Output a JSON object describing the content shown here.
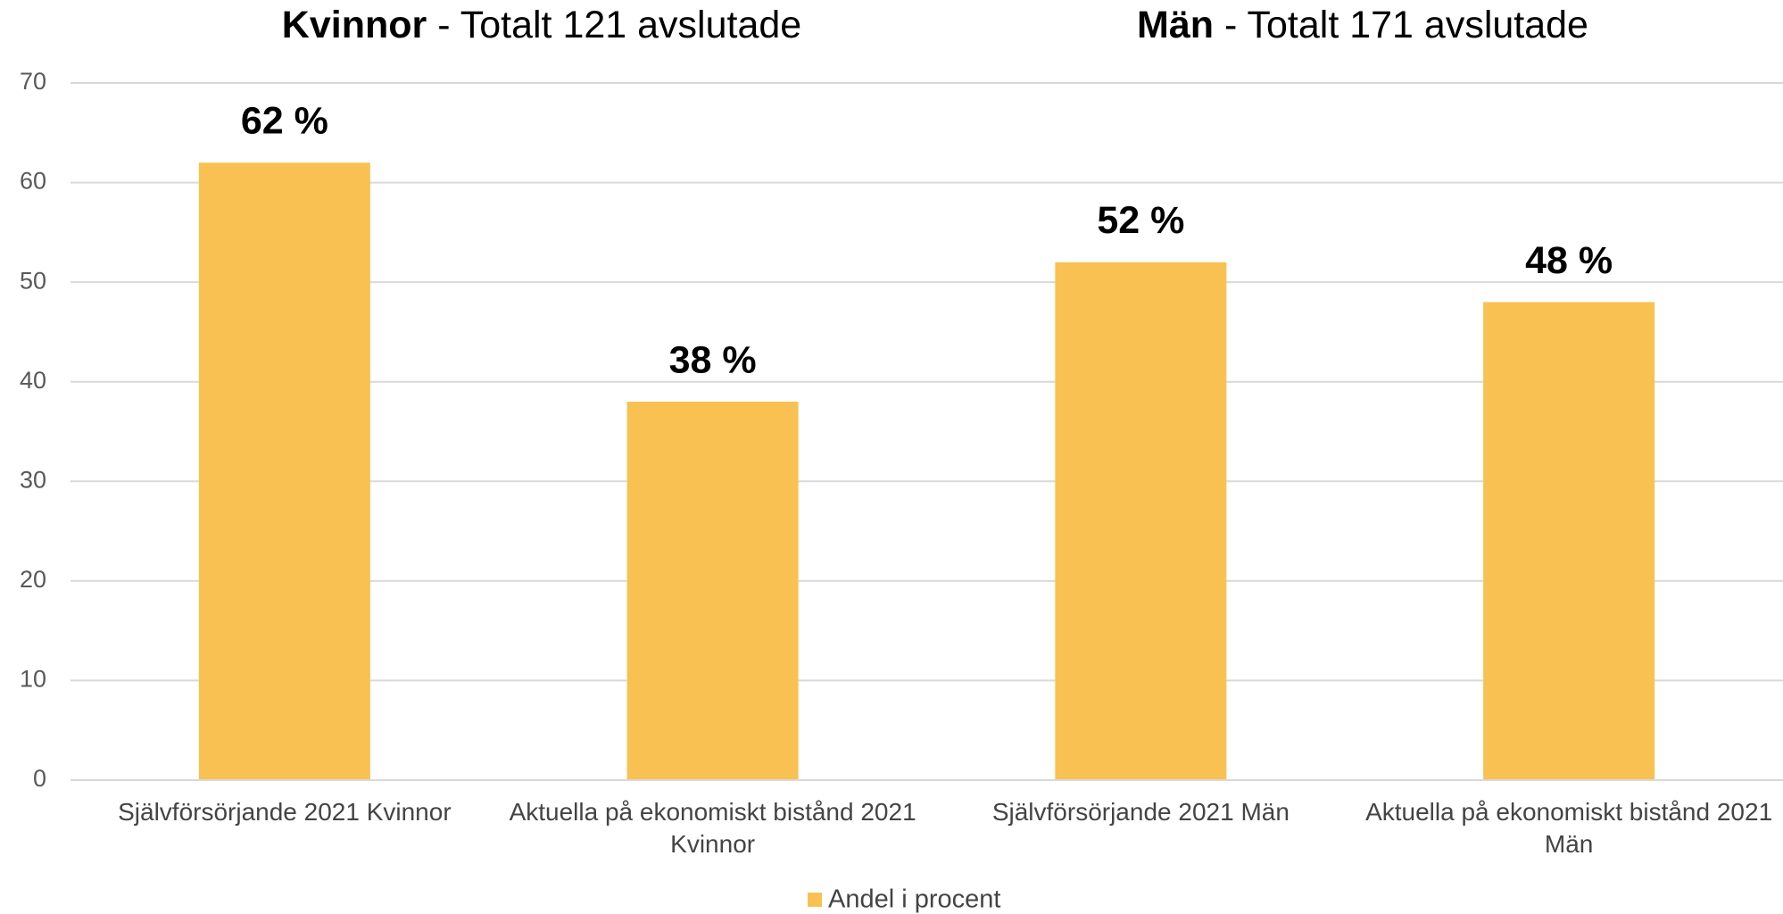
{
  "chart_data": {
    "type": "bar",
    "titles": [
      {
        "bold": "Kvinnor",
        "text": "- Totalt 121 avslutade"
      },
      {
        "bold": "Män",
        "text": "- Totalt 171 avslutade"
      }
    ],
    "categories": [
      "Självförsörjande 2021 Kvinnor",
      "Aktuella på ekonomiskt bistånd 2021 Kvinnor",
      "Självförsörjande 2021 Män",
      "Aktuella på ekonomiskt bistånd 2021 Män"
    ],
    "series": [
      {
        "name": "Andel i procent",
        "color": "#f9c152",
        "values": [
          62,
          38,
          52,
          48
        ],
        "value_labels": [
          "62 %",
          "38 %",
          "52 %",
          "48 %"
        ]
      }
    ],
    "ylim": [
      0,
      70
    ],
    "yticks": [
      0,
      10,
      20,
      30,
      40,
      50,
      60,
      70
    ],
    "grid": true,
    "legend": "bottom"
  }
}
